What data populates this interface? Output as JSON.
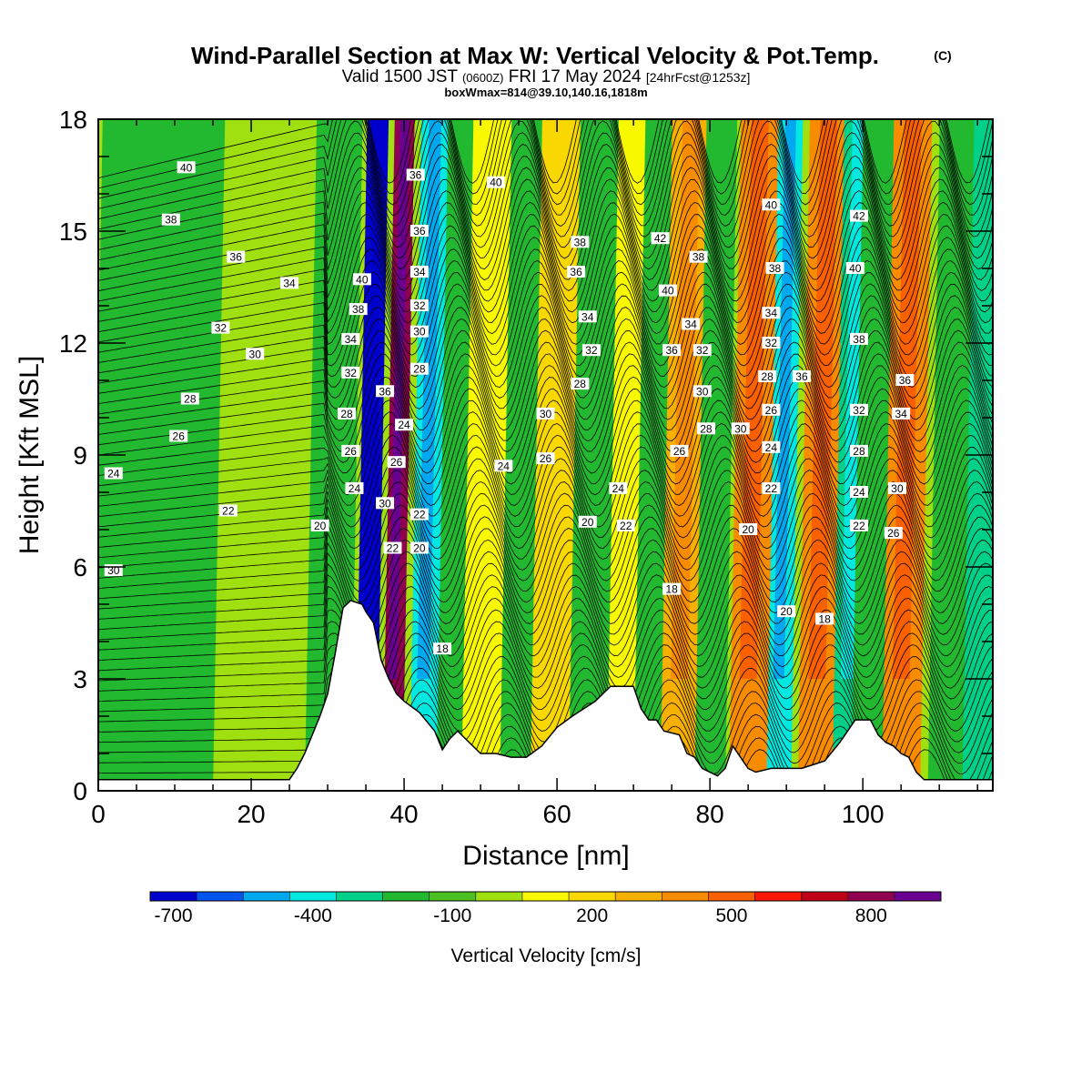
{
  "header": {
    "title": "Wind-Parallel Section at Max W: Vertical Velocity & Pot.Temp.",
    "copyright": "(C)",
    "valid_prefix": "Valid 1500 JST",
    "valid_utc": "(0600Z)",
    "valid_date": "FRI 17 May 2024",
    "forecast": "[24hrFcst@1253z]",
    "box_info": "boxWmax=814@39.10,140.16,1818m"
  },
  "chart_data": {
    "type": "heatmap",
    "xlabel": "Distance [nm]",
    "ylabel": "Height [Kft MSL]",
    "xlim": [
      0,
      117
    ],
    "ylim": [
      0,
      18
    ],
    "x_ticks": [
      0,
      20,
      40,
      60,
      80,
      100
    ],
    "y_ticks": [
      0,
      3,
      6,
      9,
      12,
      15,
      18
    ],
    "colorbar": {
      "label": "Vertical Velocity [cm/s]",
      "tick_labels": [
        "-700",
        "-400",
        "-100",
        "200",
        "500",
        "800"
      ],
      "tick_values": [
        -700,
        -400,
        -100,
        200,
        500,
        800
      ],
      "levels": [
        -700,
        -600,
        -500,
        -400,
        -300,
        -200,
        -100,
        0,
        100,
        200,
        300,
        400,
        500,
        600,
        700,
        800,
        900
      ],
      "colors": [
        "#0000cc",
        "#0055ee",
        "#00a8f0",
        "#00e8e0",
        "#00d088",
        "#22b830",
        "#4cc020",
        "#a0e010",
        "#f8f800",
        "#f8d800",
        "#f8b000",
        "#f88c00",
        "#f86000",
        "#f81808",
        "#c00018",
        "#900050",
        "#6a0090"
      ],
      "background_color": "#a0e010"
    },
    "vertical_velocity_bands": [
      {
        "x": 3,
        "half_width": 4,
        "value": -150
      },
      {
        "x": 10,
        "half_width": 5,
        "value": -150
      },
      {
        "x": 19,
        "half_width": 3,
        "value": 50
      },
      {
        "x": 30,
        "half_width": 3,
        "value": -200
      },
      {
        "x": 35,
        "half_width": 1.4,
        "value": -700
      },
      {
        "x": 38.5,
        "half_width": 1.3,
        "value": 800
      },
      {
        "x": 42.5,
        "half_width": 1.8,
        "value": -400
      },
      {
        "x": 46,
        "half_width": 1.8,
        "value": -150
      },
      {
        "x": 50,
        "half_width": 2.5,
        "value": 150
      },
      {
        "x": 55,
        "half_width": 2.5,
        "value": -150
      },
      {
        "x": 59,
        "half_width": 2.5,
        "value": 250
      },
      {
        "x": 64,
        "half_width": 2.5,
        "value": -150
      },
      {
        "x": 69,
        "half_width": 2.5,
        "value": 150
      },
      {
        "x": 72,
        "half_width": 2,
        "value": -150
      },
      {
        "x": 76,
        "half_width": 2.5,
        "value": 350
      },
      {
        "x": 80,
        "half_width": 2,
        "value": -200
      },
      {
        "x": 85,
        "half_width": 2.5,
        "value": 450
      },
      {
        "x": 89,
        "half_width": 1.6,
        "value": -400
      },
      {
        "x": 94,
        "half_width": 2.5,
        "value": 400
      },
      {
        "x": 98,
        "half_width": 2,
        "value": -300
      },
      {
        "x": 101,
        "half_width": 2.5,
        "value": -150
      },
      {
        "x": 105,
        "half_width": 2.5,
        "value": 400
      },
      {
        "x": 111,
        "half_width": 2.5,
        "value": -150
      },
      {
        "x": 115,
        "half_width": 2,
        "value": -250
      }
    ],
    "terrain": [
      [
        0,
        0.3
      ],
      [
        25,
        0.3
      ],
      [
        26,
        0.6
      ],
      [
        27,
        1.0
      ],
      [
        28,
        1.5
      ],
      [
        29,
        2.0
      ],
      [
        30,
        2.6
      ],
      [
        31,
        3.7
      ],
      [
        32,
        4.9
      ],
      [
        33,
        5.1
      ],
      [
        34.5,
        5.0
      ],
      [
        35,
        4.8
      ],
      [
        36,
        4.5
      ],
      [
        37,
        3.5
      ],
      [
        38,
        3.0
      ],
      [
        39,
        2.6
      ],
      [
        40,
        2.4
      ],
      [
        42,
        2.1
      ],
      [
        44,
        1.6
      ],
      [
        45,
        1.1
      ],
      [
        46,
        1.4
      ],
      [
        47,
        1.6
      ],
      [
        48,
        1.4
      ],
      [
        50,
        1.0
      ],
      [
        52,
        1.0
      ],
      [
        54,
        0.9
      ],
      [
        56,
        0.9
      ],
      [
        58,
        1.2
      ],
      [
        60,
        1.7
      ],
      [
        62,
        2.0
      ],
      [
        65,
        2.4
      ],
      [
        67,
        2.8
      ],
      [
        70,
        2.8
      ],
      [
        71,
        2.2
      ],
      [
        72,
        1.9
      ],
      [
        73,
        1.9
      ],
      [
        74,
        1.6
      ],
      [
        76,
        1.5
      ],
      [
        77,
        1.0
      ],
      [
        78,
        0.9
      ],
      [
        79,
        0.6
      ],
      [
        81,
        0.4
      ],
      [
        82,
        0.6
      ],
      [
        83,
        1.2
      ],
      [
        84,
        0.9
      ],
      [
        85,
        0.6
      ],
      [
        86,
        0.5
      ],
      [
        88,
        0.6
      ],
      [
        90,
        0.6
      ],
      [
        92,
        0.6
      ],
      [
        95,
        0.8
      ],
      [
        97,
        1.3
      ],
      [
        98,
        1.6
      ],
      [
        99,
        1.9
      ],
      [
        101,
        1.9
      ],
      [
        102,
        1.5
      ],
      [
        103,
        1.3
      ],
      [
        104,
        1.2
      ],
      [
        105,
        1.0
      ],
      [
        106,
        0.9
      ],
      [
        107,
        0.5
      ],
      [
        108,
        0.3
      ],
      [
        117,
        0.3
      ]
    ],
    "theta_levels": [
      18,
      20,
      22,
      24,
      26,
      28,
      30,
      32,
      34,
      36,
      38,
      40,
      42
    ],
    "contour_labels": [
      {
        "x": 11.5,
        "y": 16.7,
        "text": "40"
      },
      {
        "x": 9.5,
        "y": 15.3,
        "text": "38"
      },
      {
        "x": 18,
        "y": 14.3,
        "text": "36"
      },
      {
        "x": 25,
        "y": 13.6,
        "text": "34"
      },
      {
        "x": 16,
        "y": 12.4,
        "text": "32"
      },
      {
        "x": 20.5,
        "y": 11.7,
        "text": "30"
      },
      {
        "x": 12,
        "y": 10.5,
        "text": "28"
      },
      {
        "x": 10.5,
        "y": 9.5,
        "text": "26"
      },
      {
        "x": 2,
        "y": 8.5,
        "text": "24"
      },
      {
        "x": 17,
        "y": 7.5,
        "text": "22"
      },
      {
        "x": 29,
        "y": 7.1,
        "text": "20"
      },
      {
        "x": 2,
        "y": 5.9,
        "text": "30"
      },
      {
        "x": 41.5,
        "y": 16.5,
        "text": "36"
      },
      {
        "x": 52,
        "y": 16.3,
        "text": "40"
      },
      {
        "x": 42,
        "y": 15.0,
        "text": "36"
      },
      {
        "x": 34.5,
        "y": 13.7,
        "text": "40"
      },
      {
        "x": 42,
        "y": 13.9,
        "text": "34"
      },
      {
        "x": 34,
        "y": 12.9,
        "text": "38"
      },
      {
        "x": 42,
        "y": 13.0,
        "text": "32"
      },
      {
        "x": 42,
        "y": 12.3,
        "text": "30"
      },
      {
        "x": 33,
        "y": 12.1,
        "text": "34"
      },
      {
        "x": 42,
        "y": 11.3,
        "text": "28"
      },
      {
        "x": 33,
        "y": 11.2,
        "text": "32"
      },
      {
        "x": 37.5,
        "y": 10.7,
        "text": "36"
      },
      {
        "x": 32.5,
        "y": 10.1,
        "text": "28"
      },
      {
        "x": 40,
        "y": 9.8,
        "text": "24"
      },
      {
        "x": 33,
        "y": 9.1,
        "text": "26"
      },
      {
        "x": 39,
        "y": 8.8,
        "text": "26"
      },
      {
        "x": 33.5,
        "y": 8.1,
        "text": "24"
      },
      {
        "x": 37.5,
        "y": 7.7,
        "text": "30"
      },
      {
        "x": 42,
        "y": 7.4,
        "text": "22"
      },
      {
        "x": 38.5,
        "y": 6.5,
        "text": "22"
      },
      {
        "x": 42,
        "y": 6.5,
        "text": "20"
      },
      {
        "x": 45,
        "y": 3.8,
        "text": "18"
      },
      {
        "x": 63,
        "y": 14.7,
        "text": "38"
      },
      {
        "x": 62.5,
        "y": 13.9,
        "text": "36"
      },
      {
        "x": 64,
        "y": 12.7,
        "text": "34"
      },
      {
        "x": 64.5,
        "y": 11.8,
        "text": "32"
      },
      {
        "x": 63,
        "y": 10.9,
        "text": "28"
      },
      {
        "x": 58.5,
        "y": 10.1,
        "text": "30"
      },
      {
        "x": 58.5,
        "y": 8.9,
        "text": "26"
      },
      {
        "x": 53,
        "y": 8.7,
        "text": "24"
      },
      {
        "x": 68,
        "y": 8.1,
        "text": "24"
      },
      {
        "x": 64,
        "y": 7.2,
        "text": "20"
      },
      {
        "x": 69,
        "y": 7.1,
        "text": "22"
      },
      {
        "x": 75,
        "y": 5.4,
        "text": "18"
      },
      {
        "x": 73.5,
        "y": 14.8,
        "text": "42"
      },
      {
        "x": 78.5,
        "y": 14.3,
        "text": "38"
      },
      {
        "x": 74.5,
        "y": 13.4,
        "text": "40"
      },
      {
        "x": 77.5,
        "y": 12.5,
        "text": "34"
      },
      {
        "x": 75,
        "y": 11.8,
        "text": "36"
      },
      {
        "x": 79,
        "y": 11.8,
        "text": "32"
      },
      {
        "x": 79,
        "y": 10.7,
        "text": "30"
      },
      {
        "x": 79.5,
        "y": 9.7,
        "text": "28"
      },
      {
        "x": 76,
        "y": 9.1,
        "text": "26"
      },
      {
        "x": 84,
        "y": 9.7,
        "text": "30"
      },
      {
        "x": 85,
        "y": 7.0,
        "text": "20"
      },
      {
        "x": 88,
        "y": 15.7,
        "text": "40"
      },
      {
        "x": 88.5,
        "y": 14.0,
        "text": "38"
      },
      {
        "x": 88,
        "y": 12.8,
        "text": "34"
      },
      {
        "x": 88,
        "y": 12.0,
        "text": "32"
      },
      {
        "x": 87.5,
        "y": 11.1,
        "text": "28"
      },
      {
        "x": 92,
        "y": 11.1,
        "text": "36"
      },
      {
        "x": 88,
        "y": 10.2,
        "text": "26"
      },
      {
        "x": 88,
        "y": 9.2,
        "text": "24"
      },
      {
        "x": 88,
        "y": 8.1,
        "text": "22"
      },
      {
        "x": 90,
        "y": 4.8,
        "text": "20"
      },
      {
        "x": 95,
        "y": 4.6,
        "text": "18"
      },
      {
        "x": 99.5,
        "y": 15.4,
        "text": "42"
      },
      {
        "x": 99,
        "y": 14.0,
        "text": "40"
      },
      {
        "x": 99.5,
        "y": 12.1,
        "text": "38"
      },
      {
        "x": 105.5,
        "y": 11.0,
        "text": "36"
      },
      {
        "x": 99.5,
        "y": 10.2,
        "text": "32"
      },
      {
        "x": 105,
        "y": 10.1,
        "text": "34"
      },
      {
        "x": 99.5,
        "y": 9.1,
        "text": "28"
      },
      {
        "x": 99.5,
        "y": 8.0,
        "text": "24"
      },
      {
        "x": 104.5,
        "y": 8.1,
        "text": "30"
      },
      {
        "x": 99.5,
        "y": 7.1,
        "text": "22"
      },
      {
        "x": 104,
        "y": 6.9,
        "text": "26"
      }
    ]
  }
}
